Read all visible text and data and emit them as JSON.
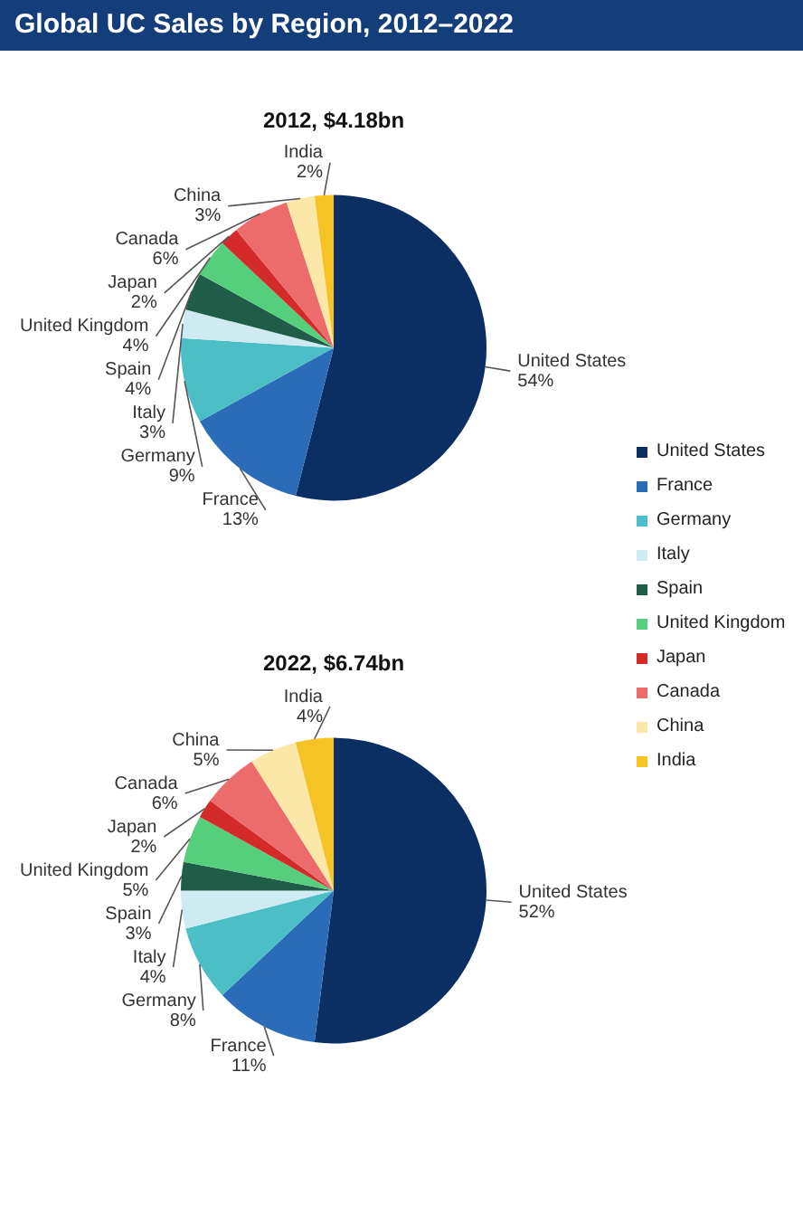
{
  "chart_data": [
    {
      "type": "pie",
      "title": "Global UC Sales by Region, 2012–2022",
      "subtitle": "2012, $4.18bn",
      "legend": "right",
      "categories": [
        "United States",
        "France",
        "Germany",
        "Italy",
        "Spain",
        "United Kingdom",
        "Japan",
        "Canada",
        "China",
        "India"
      ],
      "values": [
        54,
        13,
        9,
        3,
        4,
        4,
        2,
        6,
        3,
        2
      ],
      "value_labels": [
        "54%",
        "13%",
        "9%",
        "3%",
        "4%",
        "4%",
        "2%",
        "6%",
        "3%",
        "2%"
      ],
      "colors": [
        "#0b2f63",
        "#2a6cb8",
        "#4cbfc6",
        "#cdebf1",
        "#1f5d48",
        "#56cf7c",
        "#d42a2a",
        "#ec6b6b",
        "#fbe7a8",
        "#f6c324"
      ]
    },
    {
      "type": "pie",
      "subtitle": "2022, $6.74bn",
      "categories": [
        "United States",
        "France",
        "Germany",
        "Italy",
        "Spain",
        "United Kingdom",
        "Japan",
        "Canada",
        "China",
        "India"
      ],
      "values": [
        52,
        11,
        8,
        4,
        3,
        5,
        2,
        6,
        5,
        4
      ],
      "value_labels": [
        "52%",
        "11%",
        "8%",
        "4%",
        "3%",
        "5%",
        "2%",
        "6%",
        "5%",
        "4%"
      ],
      "colors": [
        "#0b2f63",
        "#2a6cb8",
        "#4cbfc6",
        "#cdebf1",
        "#1f5d48",
        "#56cf7c",
        "#d42a2a",
        "#ec6b6b",
        "#fbe7a8",
        "#f6c324"
      ]
    }
  ]
}
